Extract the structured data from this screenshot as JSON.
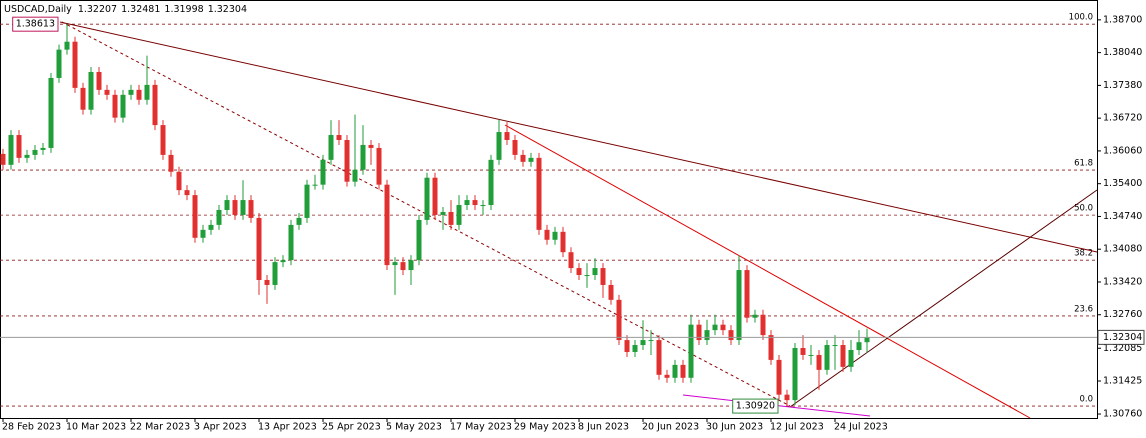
{
  "chart_data": {
    "type": "candlestick",
    "title": "USDCAD,Daily",
    "categories": [
      "28 Feb 2023",
      null,
      null,
      null,
      null,
      null,
      null,
      null,
      "10 Mar 2023",
      null,
      null,
      null,
      null,
      null,
      null,
      null,
      "22 Mar 2023",
      null,
      null,
      null,
      null,
      null,
      null,
      null,
      "3 Apr 2023",
      null,
      null,
      null,
      null,
      null,
      null,
      null,
      "13 Apr 2023",
      null,
      null,
      null,
      null,
      null,
      null,
      null,
      "25 Apr 2023",
      null,
      null,
      null,
      null,
      null,
      null,
      null,
      "5 May 2023",
      null,
      null,
      null,
      null,
      null,
      null,
      null,
      "17 May 2023",
      null,
      null,
      null,
      null,
      null,
      null,
      null,
      "29 May 2023",
      null,
      null,
      null,
      null,
      null,
      null,
      null,
      "8 Jun 2023",
      null,
      null,
      null,
      null,
      null,
      null,
      null,
      "20 Jun 2023",
      null,
      null,
      null,
      null,
      null,
      null,
      null,
      "30 Jun 2023",
      null,
      null,
      null,
      null,
      null,
      null,
      null,
      "12 Jul 2023",
      null,
      null,
      null,
      null,
      null,
      null,
      null,
      "24 Jul 2023",
      null,
      null,
      null,
      null
    ],
    "open": [
      1.36,
      1.3578,
      1.3638,
      1.3592,
      1.3598,
      1.3608,
      1.3612,
      1.3753,
      1.381,
      1.3826,
      1.3733,
      1.3689,
      1.3765,
      1.3729,
      1.3719,
      1.3673,
      1.3719,
      1.3729,
      1.3709,
      1.3739,
      1.3658,
      1.3598,
      1.3564,
      1.3527,
      1.3517,
      1.3431,
      1.3447,
      1.3457,
      1.3487,
      1.3507,
      1.3477,
      1.3507,
      1.3471,
      1.3346,
      1.3336,
      1.3382,
      1.3386,
      1.3457,
      1.3471,
      1.3538,
      1.3538,
      1.3588,
      1.3638,
      1.3628,
      1.3544,
      1.3568,
      1.3618,
      1.3612,
      1.3538,
      1.3376,
      1.3382,
      1.3366,
      1.3386,
      1.3467,
      1.3552,
      1.3477,
      1.3483,
      1.3457,
      1.3497,
      1.3507,
      1.3497,
      1.3497,
      1.3588,
      1.3644,
      1.3628,
      1.3598,
      1.3584,
      1.3592,
      1.3447,
      1.3427,
      1.3443,
      1.3402,
      1.337,
      1.3356,
      1.3356,
      1.337,
      1.3336,
      1.3306,
      1.3225,
      1.3201,
      1.3215,
      1.3225,
      1.3225,
      1.3155,
      1.3149,
      1.3175,
      1.3149,
      1.3256,
      1.3225,
      1.3245,
      1.3256,
      1.3245,
      1.3225,
      1.3366,
      1.327,
      1.3276,
      1.3235,
      1.3185,
      1.3115,
      1.3104,
      1.3209,
      1.3195,
      1.3195,
      1.3165,
      1.3215,
      1.3215,
      1.3171,
      1.3205,
      1.32207
    ],
    "high": [
      1.361,
      1.3648,
      1.3648,
      1.3608,
      1.3618,
      1.3622,
      1.3763,
      1.382,
      1.38613,
      1.3836,
      1.3743,
      1.3775,
      1.3775,
      1.3739,
      1.3729,
      1.3729,
      1.3739,
      1.3739,
      1.3798,
      1.3749,
      1.3668,
      1.3608,
      1.3574,
      1.3537,
      1.3527,
      1.3457,
      1.3467,
      1.3497,
      1.3517,
      1.3517,
      1.3547,
      1.3517,
      1.3481,
      1.3356,
      1.3392,
      1.3396,
      1.3467,
      1.3481,
      1.3548,
      1.3558,
      1.3598,
      1.3668,
      1.3668,
      1.3638,
      1.3679,
      1.3658,
      1.3628,
      1.3622,
      1.3548,
      1.3392,
      1.3392,
      1.3396,
      1.3477,
      1.3562,
      1.3562,
      1.3493,
      1.3507,
      1.3517,
      1.3517,
      1.3517,
      1.3507,
      1.3598,
      1.3669,
      1.3664,
      1.3638,
      1.3608,
      1.3602,
      1.3602,
      1.3457,
      1.3453,
      1.3453,
      1.3412,
      1.338,
      1.338,
      1.339,
      1.338,
      1.3346,
      1.3316,
      1.3235,
      1.3225,
      1.3265,
      1.3245,
      1.3235,
      1.3165,
      1.3185,
      1.3185,
      1.3276,
      1.3266,
      1.3266,
      1.3276,
      1.3266,
      1.3255,
      1.3395,
      1.3376,
      1.3286,
      1.3286,
      1.3245,
      1.3195,
      1.3125,
      1.3219,
      1.3235,
      1.3215,
      1.3205,
      1.3225,
      1.3235,
      1.3225,
      1.3225,
      1.3245,
      1.32481
    ],
    "low": [
      1.3568,
      1.3568,
      1.3582,
      1.3582,
      1.3588,
      1.3598,
      1.3602,
      1.3743,
      1.38,
      1.3723,
      1.3679,
      1.3679,
      1.3719,
      1.3709,
      1.3663,
      1.3663,
      1.3709,
      1.3699,
      1.3699,
      1.3648,
      1.3588,
      1.3554,
      1.3517,
      1.3507,
      1.3421,
      1.3421,
      1.3437,
      1.3447,
      1.3477,
      1.3467,
      1.3467,
      1.3461,
      1.3316,
      1.3298,
      1.3326,
      1.3372,
      1.3376,
      1.3447,
      1.3461,
      1.3528,
      1.3528,
      1.3578,
      1.3618,
      1.3534,
      1.3534,
      1.3558,
      1.3578,
      1.3528,
      1.3366,
      1.3316,
      1.3356,
      1.3336,
      1.3376,
      1.3457,
      1.3467,
      1.3447,
      1.3447,
      1.3447,
      1.3487,
      1.3487,
      1.3477,
      1.3487,
      1.3578,
      1.3618,
      1.3588,
      1.3574,
      1.3574,
      1.3437,
      1.3417,
      1.3417,
      1.3392,
      1.336,
      1.3346,
      1.333,
      1.3346,
      1.331,
      1.3296,
      1.3215,
      1.3191,
      1.3191,
      1.3205,
      1.3195,
      1.3145,
      1.3139,
      1.3139,
      1.3139,
      1.3139,
      1.3215,
      1.3215,
      1.3235,
      1.3235,
      1.3215,
      1.3215,
      1.326,
      1.326,
      1.3225,
      1.3175,
      1.3105,
      1.3092,
      1.3094,
      1.3185,
      1.3175,
      1.3125,
      1.3155,
      1.3165,
      1.3161,
      1.3161,
      1.3195,
      1.31998
    ],
    "close": [
      1.3578,
      1.3638,
      1.3592,
      1.3598,
      1.3608,
      1.3612,
      1.3753,
      1.381,
      1.3826,
      1.3733,
      1.3689,
      1.3765,
      1.3729,
      1.3719,
      1.3673,
      1.3719,
      1.3729,
      1.3709,
      1.3739,
      1.3658,
      1.3598,
      1.3564,
      1.3527,
      1.3517,
      1.3431,
      1.3447,
      1.3457,
      1.3487,
      1.3507,
      1.3477,
      1.3507,
      1.3471,
      1.3346,
      1.3336,
      1.3382,
      1.3386,
      1.3457,
      1.3471,
      1.3538,
      1.3538,
      1.3588,
      1.3638,
      1.3628,
      1.3544,
      1.3568,
      1.3618,
      1.3612,
      1.3538,
      1.3376,
      1.3382,
      1.3366,
      1.3386,
      1.3467,
      1.3552,
      1.3477,
      1.3483,
      1.3457,
      1.3497,
      1.3507,
      1.3497,
      1.3497,
      1.3588,
      1.3644,
      1.3628,
      1.3598,
      1.3584,
      1.3592,
      1.3447,
      1.3427,
      1.3443,
      1.3402,
      1.337,
      1.3356,
      1.3356,
      1.337,
      1.3336,
      1.3306,
      1.3225,
      1.3201,
      1.3215,
      1.3225,
      1.3225,
      1.3155,
      1.3149,
      1.3175,
      1.3149,
      1.3256,
      1.3225,
      1.3245,
      1.3256,
      1.3245,
      1.3225,
      1.3366,
      1.327,
      1.3276,
      1.3235,
      1.3185,
      1.3115,
      1.3104,
      1.3209,
      1.3195,
      1.3195,
      1.3165,
      1.3215,
      1.3215,
      1.3171,
      1.3205,
      1.32207,
      1.32304
    ],
    "up_color": "#1f9e3a",
    "down_color": "#e23030",
    "ylim": [
      1.3068,
      1.391
    ],
    "yticks": [
      {
        "value": 1.387,
        "label": "1.38700"
      },
      {
        "value": 1.3804,
        "label": "1.38040"
      },
      {
        "value": 1.3738,
        "label": "1.37380"
      },
      {
        "value": 1.3672,
        "label": "1.36720"
      },
      {
        "value": 1.3606,
        "label": "1.36060"
      },
      {
        "value": 1.354,
        "label": "1.35400"
      },
      {
        "value": 1.3474,
        "label": "1.34740"
      },
      {
        "value": 1.3408,
        "label": "1.34080"
      },
      {
        "value": 1.3342,
        "label": "1.33420"
      },
      {
        "value": 1.3276,
        "label": "1.32760"
      },
      1.32085,
      1.31425,
      {
        "value": 1.3076,
        "label": "1.30760"
      }
    ],
    "fib": {
      "color": "#8b1a1a",
      "levels": [
        {
          "value": 1.38613,
          "label": "100.0"
        },
        {
          "value": 1.35674,
          "label": "61.8"
        },
        {
          "value": 1.34767,
          "label": "50.0"
        },
        {
          "value": 1.33859,
          "label": "38.2"
        },
        {
          "value": 1.32736,
          "label": "23.6"
        },
        {
          "value": 1.3092,
          "label": "0.0"
        }
      ]
    },
    "annotations": [
      {
        "text": "1.38613",
        "value": 1.38613,
        "color": "#c0185a"
      },
      {
        "text": "1.30920",
        "value": 1.3092,
        "color": "#2e8b3a"
      }
    ]
  }
}
